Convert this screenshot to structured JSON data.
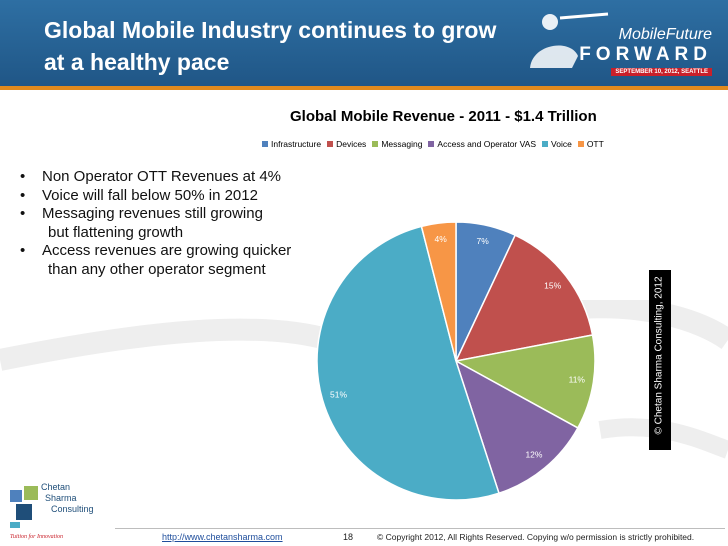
{
  "slide": {
    "title": "Global Mobile Industry continues to grow at a healthy pace",
    "page_number": "18"
  },
  "logo": {
    "name": "MobileFuture",
    "forward": "FORWARD",
    "date": "SEPTEMBER 10, 2012, SEATTLE"
  },
  "bullets": [
    {
      "lines": [
        "Non Operator OTT Revenues at 4%"
      ]
    },
    {
      "lines": [
        "Voice will fall below 50% in 2012"
      ]
    },
    {
      "lines": [
        "Messaging revenues still growing",
        "but flattening growth"
      ]
    },
    {
      "lines": [
        "Access revenues are growing quicker",
        "than any other operator segment"
      ]
    }
  ],
  "side_copyright": "© Chetan Sharma Consulting, 2012",
  "footer": {
    "company_line1": "Chetan",
    "company_line2": "Sharma",
    "company_line3": "Consulting",
    "tagline": "Tuition for Innovation",
    "url": "http://www.chetansharma.com",
    "copyright": "© Copyright 2012, All Rights Reserved. Copying w/o permission is strictly prohibited."
  },
  "colors": {
    "header": "#2e6fa3",
    "accent": "#e08a1e"
  },
  "chart_data": {
    "type": "pie",
    "title": "Global Mobile Revenue - 2011 - $1.4 Trillion",
    "legend_position": "top",
    "slices": [
      {
        "label": "Infrastructure",
        "value": 7,
        "display": "7%",
        "color": "#4f81bd"
      },
      {
        "label": "Devices",
        "value": 15,
        "display": "15%",
        "color": "#c0504d"
      },
      {
        "label": "Messaging",
        "value": 11,
        "display": "11%",
        "color": "#9bbb59"
      },
      {
        "label": "Access and Operator VAS",
        "value": 12,
        "display": "12%",
        "color": "#8064a2"
      },
      {
        "label": "Voice",
        "value": 51,
        "display": "51%",
        "color": "#4bacc6"
      },
      {
        "label": "OTT",
        "value": 4,
        "display": "4%",
        "color": "#f79646"
      }
    ]
  }
}
